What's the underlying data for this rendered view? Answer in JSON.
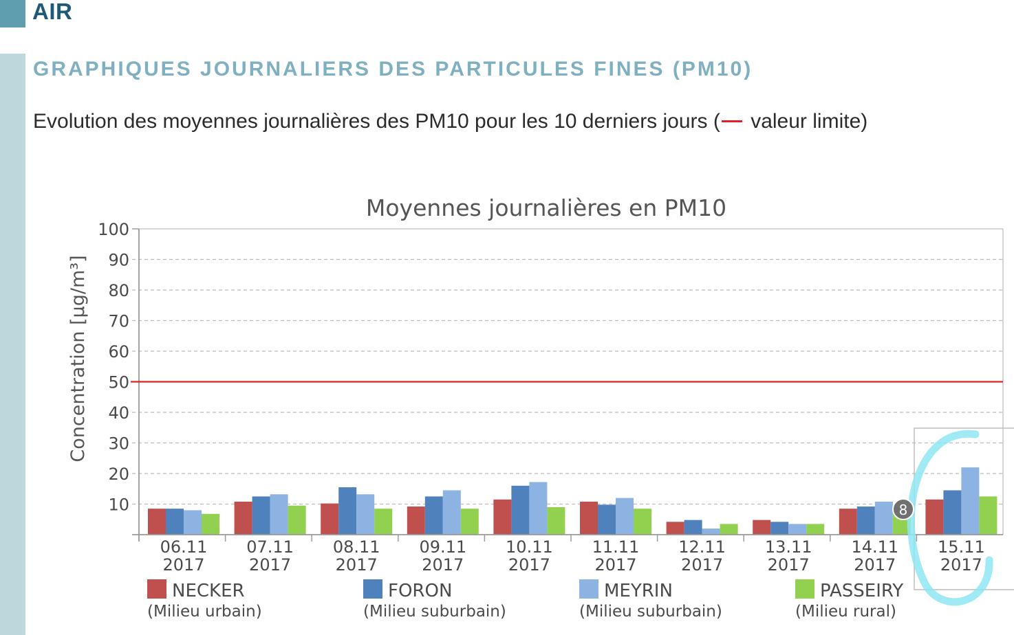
{
  "header": {
    "title": "AIR"
  },
  "section": {
    "title": "GRAPHIQUES JOURNALIERS DES PARTICULES FINES (PM10)",
    "subtitle_before": "Evolution des moyennes journalières des PM10 pour les 10 derniers jours (",
    "subtitle_after": " valeur limite)"
  },
  "overlay": {
    "badge": "8"
  },
  "colors": {
    "limit_line": "#e31e24",
    "grid": "#bbbbbb",
    "overlay_scribble": "#8ee6f2"
  },
  "chart_data": {
    "type": "bar",
    "title": "Moyennes journalières en PM10",
    "ylabel": "Concentration [µg/m³]",
    "xlabel": "",
    "ylim": [
      0,
      100
    ],
    "yticks": [
      10,
      20,
      30,
      40,
      50,
      60,
      70,
      80,
      90,
      100
    ],
    "grid": true,
    "legend_placement": "bottom",
    "limit_value": 50,
    "categories": [
      [
        "06.11",
        "2017"
      ],
      [
        "07.11",
        "2017"
      ],
      [
        "08.11",
        "2017"
      ],
      [
        "09.11",
        "2017"
      ],
      [
        "10.11",
        "2017"
      ],
      [
        "11.11",
        "2017"
      ],
      [
        "12.11",
        "2017"
      ],
      [
        "13.11",
        "2017"
      ],
      [
        "14.11",
        "2017"
      ],
      [
        "15.11",
        "2017"
      ]
    ],
    "series": [
      {
        "name": "NECKER",
        "sub": "(Milieu urbain)",
        "color": "#c0504d",
        "values": [
          8.5,
          10.8,
          10.2,
          9.2,
          11.5,
          10.8,
          4.2,
          4.8,
          8.5,
          11.5
        ]
      },
      {
        "name": "FORON",
        "sub": "(Milieu suburbain)",
        "color": "#4f81bd",
        "values": [
          8.5,
          12.5,
          15.5,
          12.5,
          16.0,
          9.8,
          4.8,
          4.2,
          9.2,
          14.5
        ]
      },
      {
        "name": "MEYRIN",
        "sub": "(Milieu suburbain)",
        "color": "#8db3e2",
        "values": [
          8.0,
          13.2,
          13.2,
          14.5,
          17.2,
          12.0,
          2.0,
          3.5,
          10.8,
          22.0
        ]
      },
      {
        "name": "PASSEIRY",
        "sub": "(Milieu rural)",
        "color": "#92d050",
        "values": [
          6.8,
          9.5,
          8.5,
          8.5,
          9.0,
          8.5,
          3.5,
          3.5,
          9.0,
          12.5
        ]
      }
    ]
  }
}
